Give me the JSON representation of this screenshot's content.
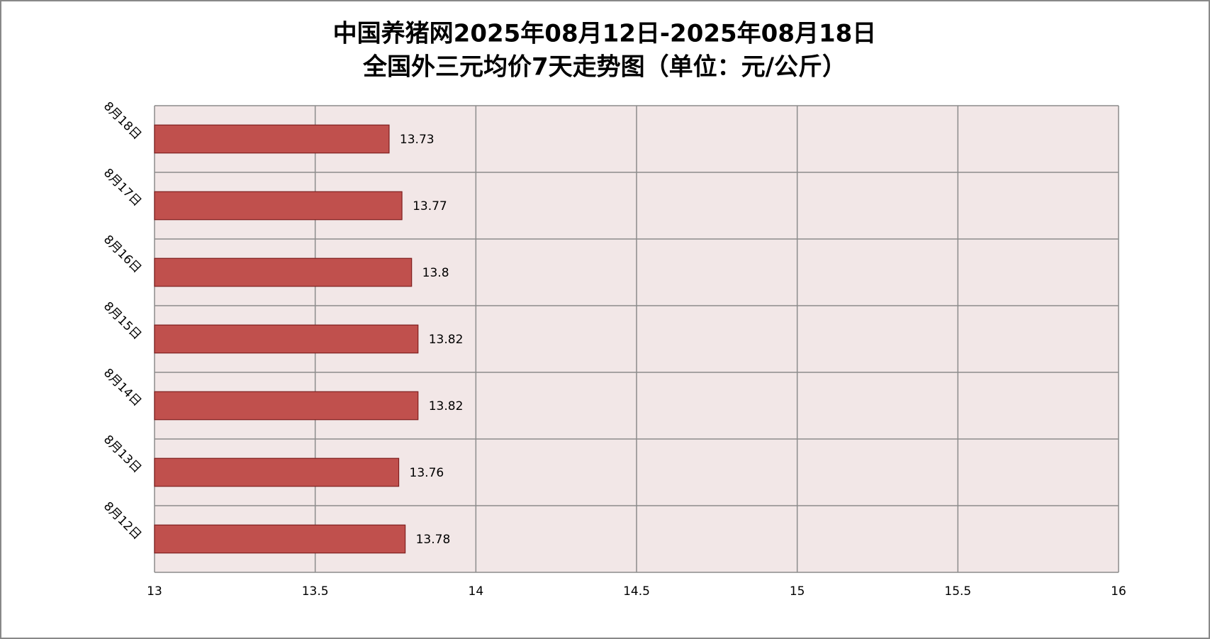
{
  "chart_data": {
    "type": "barh",
    "title": "中国养猪网2025年08月12日-2025年08月18日",
    "subtitle": "全国外三元均价7天走势图（单位：元/公斤）",
    "categories": [
      "8月18日",
      "8月17日",
      "8月16日",
      "8月15日",
      "8月14日",
      "8月13日",
      "8月12日"
    ],
    "values": [
      13.73,
      13.77,
      13.8,
      13.82,
      13.82,
      13.76,
      13.78
    ],
    "color": "#c0504d",
    "xlim": [
      13,
      16
    ],
    "xticks": [
      13,
      13.5,
      14,
      14.5,
      15,
      15.5,
      16
    ],
    "grid": true
  }
}
